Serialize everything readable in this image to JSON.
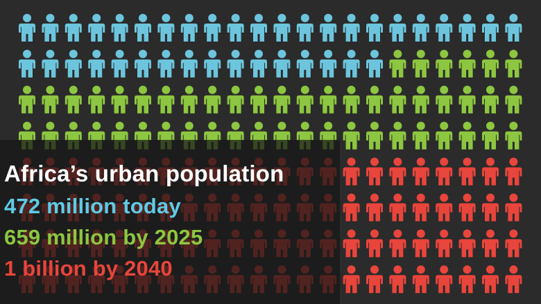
{
  "infographic": {
    "title": "Africa’s urban population",
    "stats": [
      "472 million today",
      "659 million by 2025",
      "1 billion by 2040"
    ]
  }
}
